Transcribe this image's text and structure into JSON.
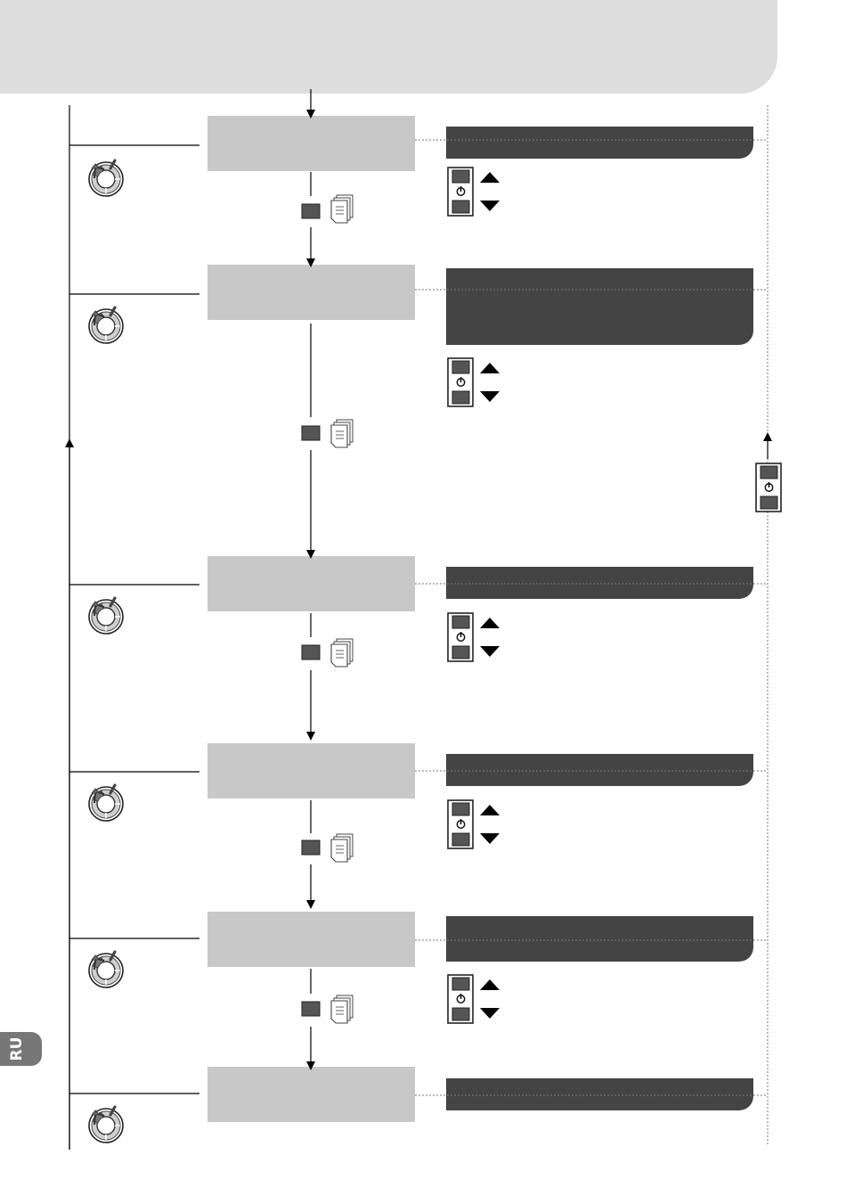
{
  "header": {
    "title": ""
  },
  "language_tab": {
    "label": "RU"
  },
  "steps": [
    {
      "id": "step-1",
      "label": "",
      "banner_text": ""
    },
    {
      "id": "step-2",
      "label": "",
      "banner_text": ""
    },
    {
      "id": "step-3",
      "label": "",
      "banner_text": ""
    },
    {
      "id": "step-4",
      "label": "",
      "banner_text": ""
    },
    {
      "id": "step-5",
      "label": "",
      "banner_text": ""
    },
    {
      "id": "step-6",
      "label": "",
      "banner_text": ""
    }
  ],
  "icons": {
    "dial": "rotary-dial-icon",
    "up": "triangle-up-icon",
    "down": "triangle-down-icon",
    "power": "power-icon",
    "document": "document-icon",
    "square_button": "square-button-icon"
  },
  "colors": {
    "header_bg": "#dddddd",
    "step_box": "#c8c8c8",
    "banner": "#444444",
    "button_fill": "#555555",
    "lang_tab": "#777777"
  }
}
